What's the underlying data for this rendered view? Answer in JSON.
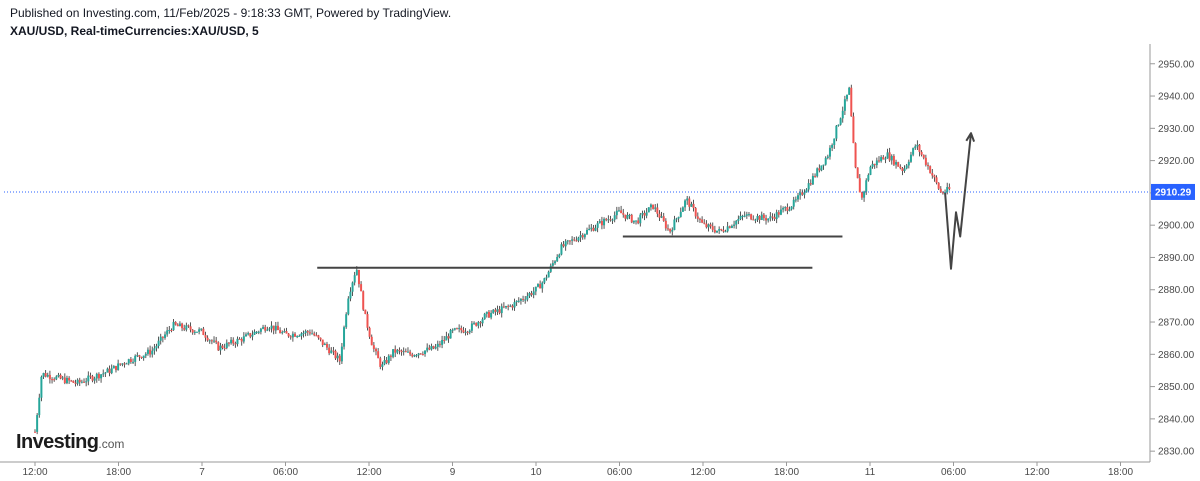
{
  "header": {
    "published": "Published on Investing.com, 11/Feb/2025 - 9:18:33 GMT, Powered by TradingView.",
    "symbol": "XAU/USD, Real-timeCurrencies:XAU/USD, 5"
  },
  "logo": {
    "main": "Investing",
    "suffix": ".com"
  },
  "colors": {
    "up": "#26a69a",
    "down": "#ef5350",
    "wick": "#2b2b2b",
    "line": "#444444",
    "last_price": "#2962ff"
  },
  "chart_data": {
    "type": "candlestick",
    "last_price": {
      "label": "2910.29",
      "value": 2910.29
    },
    "y_ticks": [
      "2950.00",
      "2940.00",
      "2930.00",
      "2920.00",
      "2910.00",
      "2900.00",
      "2890.00",
      "2880.00",
      "2870.00",
      "2860.00",
      "2850.00",
      "2840.00",
      "2830.00"
    ],
    "ylim": [
      2828.5,
      2955.5
    ],
    "x_ticks": [
      "12:00",
      "18:00",
      "7",
      "06:00",
      "12:00",
      "9",
      "10",
      "06:00",
      "12:00",
      "18:00",
      "11",
      "06:00",
      "12:00",
      "18:00"
    ],
    "x_tick_index": [
      0,
      1,
      2,
      3,
      4,
      5,
      6,
      7,
      8,
      9,
      10,
      11,
      12,
      13
    ],
    "price_path": [
      [
        0,
        2836
      ],
      [
        0.08,
        2854
      ],
      [
        0.5,
        2851
      ],
      [
        0.9,
        2855
      ],
      [
        1.1,
        2858
      ],
      [
        1.4,
        2861
      ],
      [
        1.65,
        2869
      ],
      [
        2.0,
        2867
      ],
      [
        2.2,
        2862
      ],
      [
        2.5,
        2865
      ],
      [
        2.8,
        2869
      ],
      [
        3.0,
        2866
      ],
      [
        3.3,
        2867
      ],
      [
        3.5,
        2862
      ],
      [
        3.65,
        2858
      ],
      [
        3.75,
        2878
      ],
      [
        3.85,
        2887
      ],
      [
        3.95,
        2872
      ],
      [
        4.05,
        2862
      ],
      [
        4.15,
        2856
      ],
      [
        4.3,
        2861
      ],
      [
        4.5,
        2860
      ],
      [
        4.8,
        2862
      ],
      [
        5.0,
        2867
      ],
      [
        5.2,
        2868
      ],
      [
        5.4,
        2872
      ],
      [
        5.7,
        2875
      ],
      [
        6.0,
        2880
      ],
      [
        6.1,
        2883
      ],
      [
        6.3,
        2893
      ],
      [
        6.6,
        2898
      ],
      [
        7.0,
        2904
      ],
      [
        7.2,
        2901
      ],
      [
        7.4,
        2906
      ],
      [
        7.6,
        2898
      ],
      [
        7.8,
        2908
      ],
      [
        8.0,
        2900
      ],
      [
        8.2,
        2898
      ],
      [
        8.5,
        2903
      ],
      [
        8.8,
        2902
      ],
      [
        9.1,
        2907
      ],
      [
        9.3,
        2914
      ],
      [
        9.5,
        2922
      ],
      [
        9.7,
        2938
      ],
      [
        9.75,
        2942
      ],
      [
        9.82,
        2918
      ],
      [
        9.9,
        2908
      ],
      [
        10.0,
        2918
      ],
      [
        10.2,
        2922
      ],
      [
        10.4,
        2917
      ],
      [
        10.55,
        2925
      ],
      [
        10.7,
        2918
      ],
      [
        10.85,
        2910
      ],
      [
        10.95,
        2911
      ]
    ],
    "levels": [
      {
        "value": 2896.5,
        "x_start": 7.04,
        "x_end": 9.67
      },
      {
        "value": 2886.8,
        "x_start": 3.38,
        "x_end": 9.31
      }
    ],
    "projection": [
      [
        10.9,
        2910.0
      ],
      [
        10.97,
        2886.5
      ],
      [
        11.03,
        2904.0
      ],
      [
        11.08,
        2896.5
      ],
      [
        11.21,
        2928.5
      ]
    ]
  }
}
